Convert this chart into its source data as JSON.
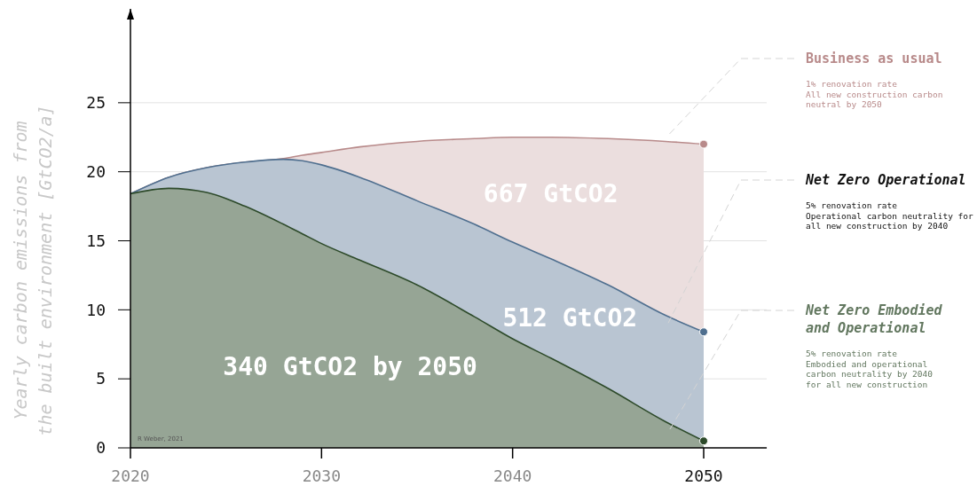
{
  "chart_data": {
    "type": "area",
    "ylabel": "Yearly carbon emissions from\nthe built environment [GtCO2/a]",
    "x": [
      2020,
      2022,
      2024,
      2026,
      2028,
      2029,
      2030,
      2032,
      2035,
      2038,
      2040,
      2042,
      2045,
      2048,
      2050
    ],
    "series": [
      {
        "name": "Business as usual",
        "color": "#b88a8a",
        "values": [
          18.4,
          19.6,
          20.3,
          20.7,
          20.95,
          21.2,
          21.4,
          21.8,
          22.2,
          22.4,
          22.5,
          22.5,
          22.4,
          22.2,
          22.0
        ]
      },
      {
        "name": "Net Zero Operational",
        "color": "#4f6f8f",
        "values": [
          18.4,
          19.6,
          20.3,
          20.7,
          20.9,
          20.8,
          20.5,
          19.6,
          17.9,
          16.2,
          14.9,
          13.7,
          11.8,
          9.6,
          8.4
        ]
      },
      {
        "name": "Net Zero Embodied and Operational",
        "color": "#2d4a2a",
        "values": [
          18.4,
          18.8,
          18.5,
          17.5,
          16.2,
          15.5,
          14.8,
          13.6,
          11.8,
          9.5,
          7.9,
          6.5,
          4.3,
          1.9,
          0.5
        ]
      }
    ],
    "xlim": [
      2020,
      2053.3
    ],
    "xticks": [
      2020,
      2030,
      2040,
      2050
    ],
    "ylim": [
      0,
      31.8
    ],
    "yticks": [
      0,
      5,
      10,
      15,
      20,
      25
    ],
    "grid": "y",
    "legend": "right",
    "annotations": [
      "1% renovation rate\nAll new construction carbon\nneutral by 2050",
      "5% renovation rate\nOperational carbon neutrality for\nall new construction by 2040",
      "5% renovation rate\nEmbodied and operational\ncarbon neutrality by 2040\nfor all new construction",
      "667 GtCO2",
      "512 GtCO2",
      "340 GtCO2 by 2050",
      "R Weber, 2021"
    ]
  }
}
